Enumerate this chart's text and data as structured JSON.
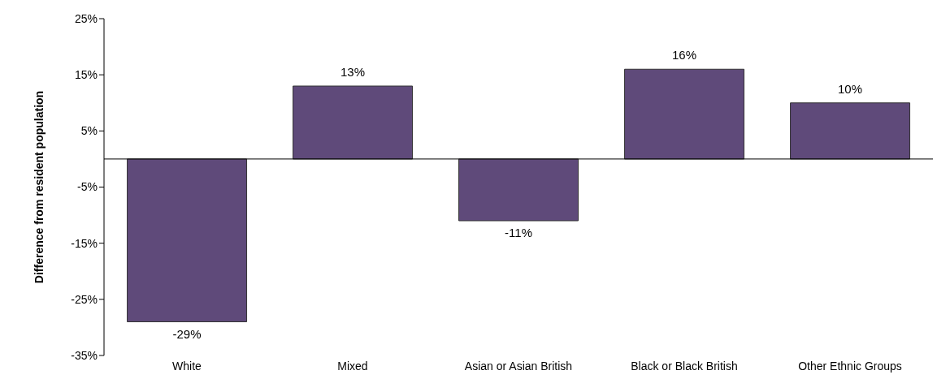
{
  "chart_data": {
    "type": "bar",
    "ylabel": "Difference from resident population",
    "categories": [
      "White",
      "Mixed",
      "Asian or Asian British",
      "Black or Black British",
      "Other Ethnic Groups"
    ],
    "values": [
      -29,
      13,
      -11,
      16,
      10
    ],
    "value_labels": [
      "-29%",
      "13%",
      "-11%",
      "16%",
      "10%"
    ],
    "color": "#5f4a7a",
    "ylim": [
      -35,
      25
    ],
    "yticks": [
      {
        "value": -35,
        "label": "-35%"
      },
      {
        "value": -25,
        "label": "-25%"
      },
      {
        "value": -15,
        "label": "-15%"
      },
      {
        "value": -5,
        "label": "-5%"
      },
      {
        "value": 5,
        "label": "5%"
      },
      {
        "value": 15,
        "label": "15%"
      },
      {
        "value": 25,
        "label": "25%"
      }
    ],
    "grid": false,
    "legend": false
  }
}
